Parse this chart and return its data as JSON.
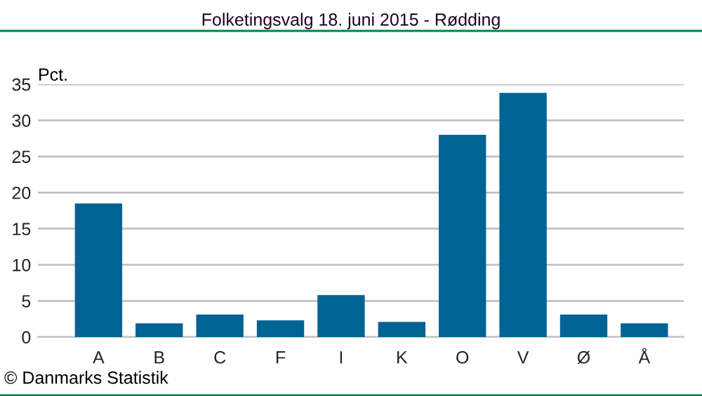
{
  "chart_data": {
    "type": "bar",
    "title": "Folketingsvalg 18. juni 2015 - Rødding",
    "ylabel": "Pct.",
    "categories": [
      "A",
      "B",
      "C",
      "F",
      "I",
      "K",
      "O",
      "V",
      "Ø",
      "Å"
    ],
    "values": [
      18.5,
      1.9,
      3.1,
      2.3,
      5.8,
      2.1,
      28.0,
      33.8,
      3.1,
      1.9
    ],
    "color": "#006394",
    "ylim": [
      0,
      35
    ],
    "yticks": [
      0,
      5,
      10,
      15,
      20,
      25,
      30,
      35
    ],
    "grid": "y",
    "legend": false,
    "annotations": [
      "© Danmarks Statistik"
    ]
  }
}
